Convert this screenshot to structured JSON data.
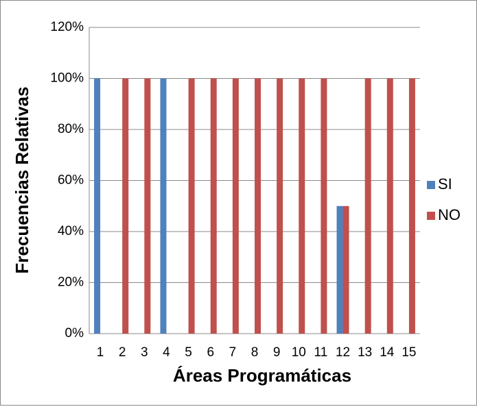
{
  "chart_data": {
    "type": "bar",
    "x_label": "Áreas Programáticas",
    "y_label": "Frecuencias Relativas",
    "categories": [
      "1",
      "2",
      "3",
      "4",
      "5",
      "6",
      "7",
      "8",
      "9",
      "10",
      "11",
      "12",
      "13",
      "14",
      "15"
    ],
    "series": [
      {
        "name": "SI",
        "color": "#4f81bd",
        "values": [
          100,
          0,
          0,
          100,
          0,
          0,
          0,
          0,
          0,
          0,
          0,
          50,
          0,
          0,
          0
        ]
      },
      {
        "name": "NO",
        "color": "#c0504d",
        "values": [
          0,
          100,
          100,
          0,
          100,
          100,
          100,
          100,
          100,
          100,
          100,
          50,
          100,
          100,
          100
        ]
      }
    ],
    "ylim": [
      0,
      120
    ],
    "yticks": [
      {
        "value": 0,
        "label": "0%"
      },
      {
        "value": 20,
        "label": "20%"
      },
      {
        "value": 40,
        "label": "40%"
      },
      {
        "value": 60,
        "label": "60%"
      },
      {
        "value": 80,
        "label": "80%"
      },
      {
        "value": 100,
        "label": "100%"
      },
      {
        "value": 120,
        "label": "120%"
      }
    ],
    "grid": true,
    "legend": "right"
  }
}
